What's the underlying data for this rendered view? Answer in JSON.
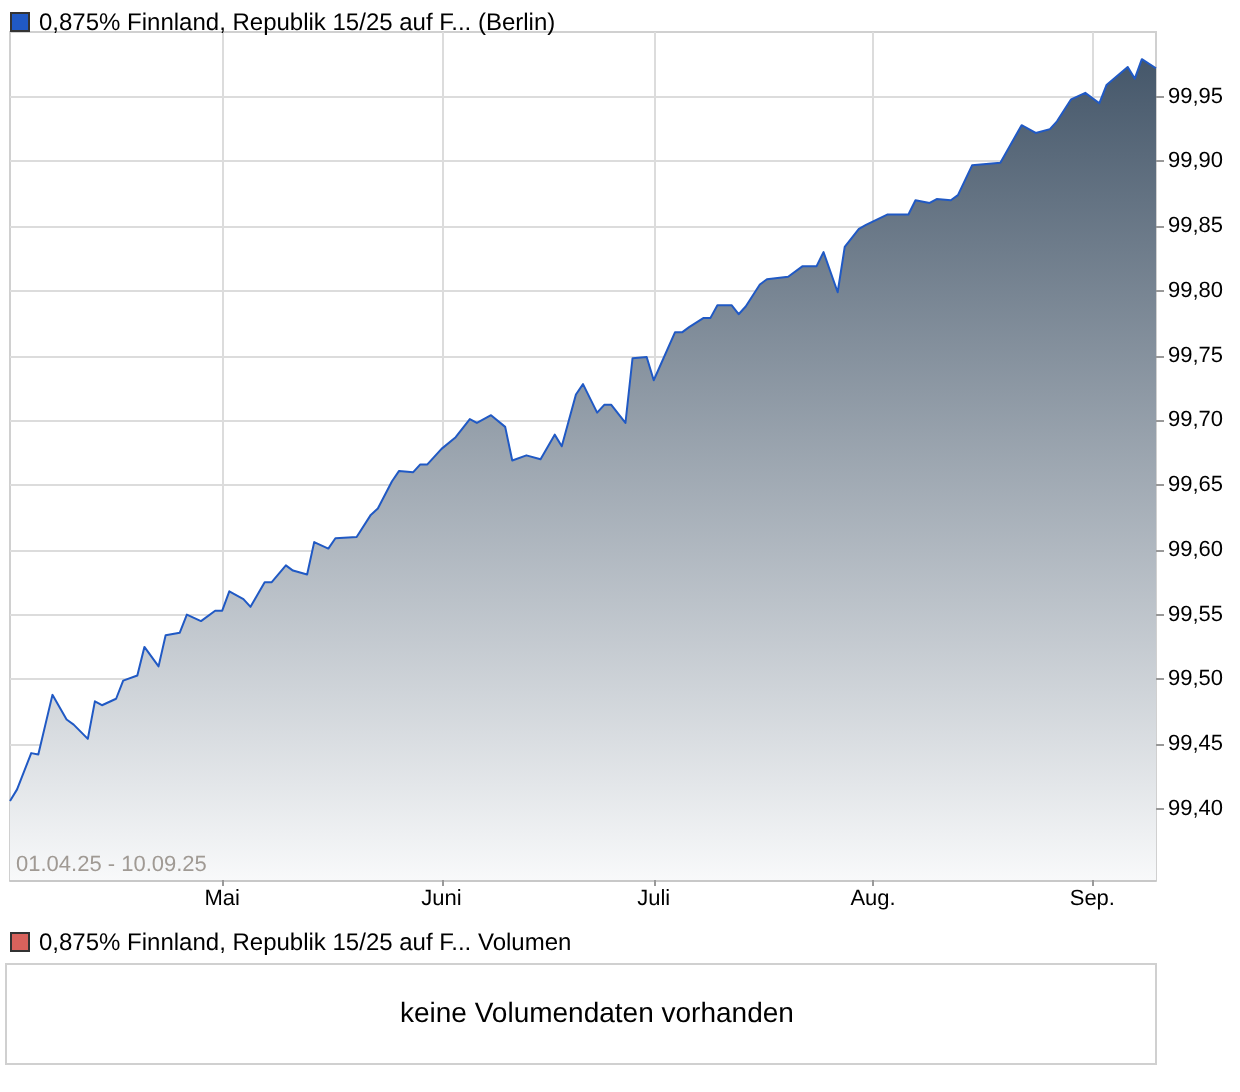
{
  "chart_data": [
    {
      "type": "area",
      "legend": "top left",
      "grid": true,
      "marker": "none",
      "xlim": [
        "--04-01",
        "--09-10"
      ],
      "ylim": [
        99.345,
        100.0
      ],
      "xticks": [
        {
          "value": "--05-01",
          "label": "Mai"
        },
        {
          "value": "--06-01",
          "label": "Juni"
        },
        {
          "value": "--07-01",
          "label": "Juli"
        },
        {
          "value": "--08-01",
          "label": "Aug."
        },
        {
          "value": "--09-01",
          "label": "Sep."
        }
      ],
      "yticks": [
        {
          "value": 99.4,
          "label": "99,40"
        },
        {
          "value": 99.45,
          "label": "99,45"
        },
        {
          "value": 99.5,
          "label": "99,50"
        },
        {
          "value": 99.55,
          "label": "99,55"
        },
        {
          "value": 99.6,
          "label": "99,60"
        },
        {
          "value": 99.65,
          "label": "99,65"
        },
        {
          "value": 99.7,
          "label": "99,70"
        },
        {
          "value": 99.75,
          "label": "99,75"
        },
        {
          "value": 99.8,
          "label": "99,80"
        },
        {
          "value": 99.85,
          "label": "99,85"
        },
        {
          "value": 99.9,
          "label": "99,90"
        },
        {
          "value": 99.95,
          "label": "99,95"
        }
      ],
      "annotations": [
        "01.04.25 - 10.09.25"
      ],
      "x": [
        "--04-01",
        "--04-02",
        "--04-04",
        "--04-05",
        "--04-07",
        "--04-09",
        "--04-10",
        "--04-12",
        "--04-13",
        "--04-14",
        "--04-16",
        "--04-17",
        "--04-19",
        "--04-20",
        "--04-22",
        "--04-23",
        "--04-25",
        "--04-26",
        "--04-28",
        "--04-30",
        "--05-01",
        "--05-02",
        "--05-04",
        "--05-05",
        "--05-07",
        "--05-08",
        "--05-10",
        "--05-11",
        "--05-13",
        "--05-14",
        "--05-16",
        "--05-17",
        "--05-20",
        "--05-22",
        "--05-23",
        "--05-25",
        "--05-26",
        "--05-28",
        "--05-29",
        "--05-30",
        "--06-01",
        "--06-03",
        "--06-05",
        "--06-06",
        "--06-08",
        "--06-10",
        "--06-11",
        "--06-13",
        "--06-15",
        "--06-17",
        "--06-18",
        "--06-20",
        "--06-21",
        "--06-23",
        "--06-24",
        "--06-25",
        "--06-27",
        "--06-28",
        "--06-30",
        "--07-01",
        "--07-04",
        "--07-05",
        "--07-06",
        "--07-08",
        "--07-09",
        "--07-10",
        "--07-12",
        "--07-13",
        "--07-14",
        "--07-16",
        "--07-17",
        "--07-20",
        "--07-22",
        "--07-24",
        "--07-25",
        "--07-27",
        "--07-28",
        "--07-30",
        "--07-31",
        "--08-03",
        "--08-06",
        "--08-07",
        "--08-09",
        "--08-10",
        "--08-12",
        "--08-13",
        "--08-15",
        "--08-19",
        "--08-22",
        "--08-24",
        "--08-26",
        "--08-27",
        "--08-29",
        "--08-31",
        "--09-02",
        "--09-03",
        "--09-06",
        "--09-07",
        "--09-08",
        "--09-10"
      ],
      "series": [
        {
          "name": "0,875% Finnland, Republik 15/25 auf F... (Berlin)",
          "color": "#2059c4",
          "values": [
            99.406,
            99.415,
            99.443,
            99.442,
            99.488,
            99.469,
            99.465,
            99.454,
            99.483,
            99.48,
            99.485,
            99.499,
            99.503,
            99.525,
            99.51,
            99.534,
            99.536,
            99.55,
            99.545,
            99.553,
            99.553,
            99.568,
            99.562,
            99.556,
            99.575,
            99.575,
            99.588,
            99.584,
            99.581,
            99.606,
            99.601,
            99.609,
            99.61,
            99.627,
            99.632,
            99.653,
            99.661,
            99.66,
            99.666,
            99.666,
            99.678,
            99.687,
            99.701,
            99.698,
            99.704,
            99.695,
            99.669,
            99.673,
            99.67,
            99.689,
            99.68,
            99.72,
            99.728,
            99.706,
            99.712,
            99.712,
            99.698,
            99.748,
            99.749,
            99.731,
            99.768,
            99.768,
            99.772,
            99.779,
            99.779,
            99.789,
            99.789,
            99.782,
            99.788,
            99.805,
            99.809,
            99.811,
            99.819,
            99.819,
            99.83,
            99.799,
            99.834,
            99.848,
            99.851,
            99.859,
            99.859,
            99.87,
            99.868,
            99.871,
            99.87,
            99.874,
            99.897,
            99.899,
            99.928,
            99.922,
            99.925,
            99.931,
            99.948,
            99.953,
            99.945,
            99.959,
            99.973,
            99.964,
            99.979,
            99.972
          ]
        }
      ]
    },
    {
      "type": "other",
      "legend": "top left",
      "series": [
        {
          "name": "0,875% Finnland, Republik 15/25 auf F... Volumen",
          "color": "#d9625c"
        }
      ],
      "annotations": [
        "keine Volumendaten vorhanden"
      ]
    }
  ]
}
